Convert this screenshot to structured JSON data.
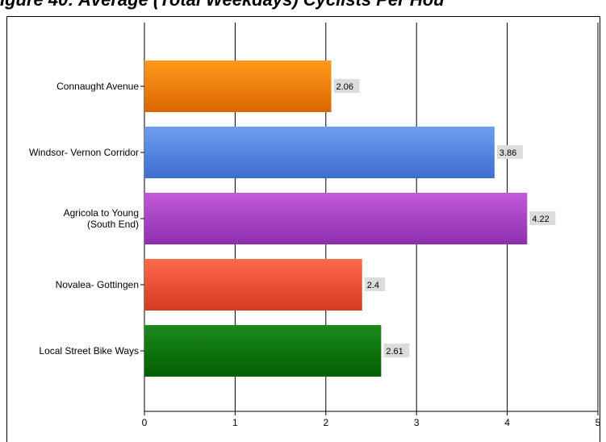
{
  "page": {
    "title_visible": "igure 40: Average (Total Weekdays) Cyclists Per Hou"
  },
  "chart_data": {
    "type": "bar",
    "orientation": "horizontal",
    "title": "",
    "xlabel": "",
    "ylabel": "",
    "categories": [
      "Connaught Avenue",
      "Windsor- Vernon Corridor",
      "Agricola to Young (South End)",
      "Novalea- Gottingen",
      "Local Street Bike Ways"
    ],
    "category_label_lines": [
      [
        "Connaught Avenue"
      ],
      [
        "Windsor- Vernon Corridor"
      ],
      [
        "Agricola to Young",
        "(South End)"
      ],
      [
        "Novalea- Gottingen"
      ],
      [
        "Local Street Bike Ways"
      ]
    ],
    "values": [
      2.06,
      3.86,
      4.22,
      2.4,
      2.61
    ],
    "data_labels": [
      "2.06",
      "3.86",
      "4.22",
      "2.4",
      "2.61"
    ],
    "xlim": [
      0,
      5
    ],
    "xticks": [
      0,
      1,
      2,
      3,
      4,
      5
    ],
    "xtick_labels": [
      "0",
      "1",
      "2",
      "3",
      "4",
      "5"
    ],
    "grid": true,
    "legend": "none",
    "colors": [
      {
        "top": "#ff9a1a",
        "bottom": "#d96600"
      },
      {
        "top": "#6e9cf0",
        "bottom": "#3e6fd0"
      },
      {
        "top": "#c15ad8",
        "bottom": "#8e2fb0"
      },
      {
        "top": "#ff6a4a",
        "bottom": "#d43a20"
      },
      {
        "top": "#1f8a1f",
        "bottom": "#005f00"
      }
    ]
  }
}
